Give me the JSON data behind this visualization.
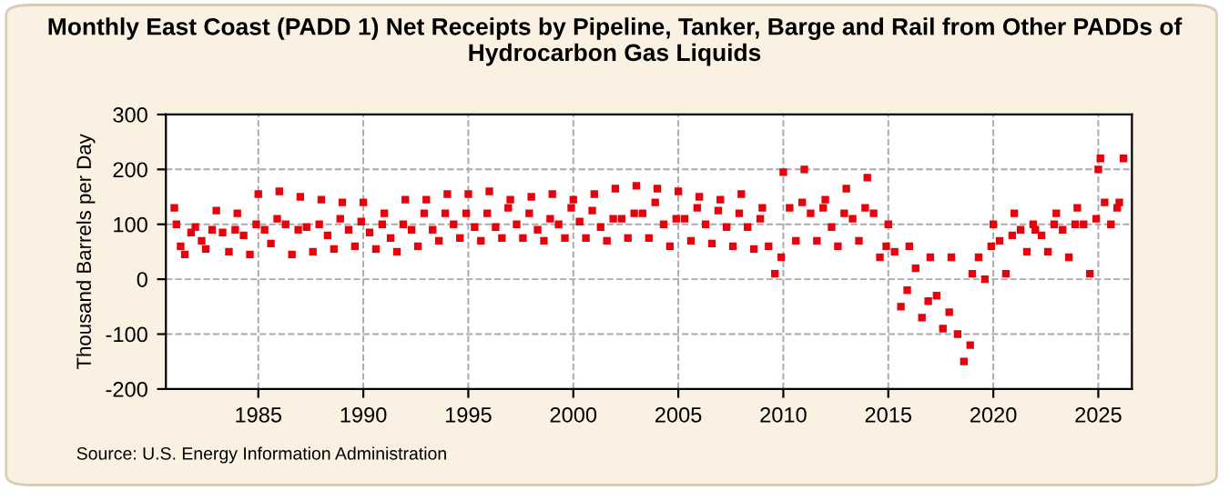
{
  "chart_data": {
    "type": "scatter",
    "title": "Monthly East Coast (PADD 1) Net Receipts by Pipeline, Tanker, Barge and Rail from Other PADDs of Hydrocarbon Gas Liquids",
    "ylabel": "Thousand Barrels per Day",
    "annotations": [
      "Source: U.S. Energy Information Administration"
    ],
    "xlim": [
      1980.6,
      2026.6
    ],
    "xticks": [
      1985,
      1990,
      1995,
      2000,
      2005,
      2010,
      2015,
      2020,
      2025
    ],
    "ylim": [
      -200,
      300
    ],
    "yticks": [
      -200,
      -100,
      0,
      100,
      200,
      300
    ],
    "grid": true,
    "marker": "square",
    "series": [
      {
        "color": "#e8000b",
        "x": [
          1981.0,
          1981.1,
          1981.3,
          1981.5,
          1981.8,
          1982.0,
          1982.3,
          1982.5,
          1982.8,
          1983.0,
          1983.3,
          1983.6,
          1983.9,
          1984.0,
          1984.3,
          1984.6,
          1984.9,
          1985.0,
          1985.3,
          1985.6,
          1985.9,
          1986.0,
          1986.3,
          1986.6,
          1986.9,
          1987.0,
          1987.3,
          1987.6,
          1987.9,
          1988.0,
          1988.3,
          1988.6,
          1988.9,
          1989.0,
          1989.3,
          1989.6,
          1989.9,
          1990.0,
          1990.3,
          1990.6,
          1990.9,
          1991.0,
          1991.3,
          1991.6,
          1991.9,
          1992.0,
          1992.3,
          1992.6,
          1992.9,
          1993.0,
          1993.3,
          1993.6,
          1993.9,
          1994.0,
          1994.3,
          1994.6,
          1994.9,
          1995.0,
          1995.3,
          1995.6,
          1995.9,
          1996.0,
          1996.3,
          1996.6,
          1996.9,
          1997.0,
          1997.3,
          1997.6,
          1997.9,
          1998.0,
          1998.3,
          1998.6,
          1998.9,
          1999.0,
          1999.3,
          1999.6,
          1999.9,
          2000.0,
          2000.3,
          2000.6,
          2000.9,
          2001.0,
          2001.3,
          2001.6,
          2001.9,
          2002.0,
          2002.3,
          2002.6,
          2002.9,
          2003.0,
          2003.3,
          2003.6,
          2003.9,
          2004.0,
          2004.3,
          2004.6,
          2004.9,
          2005.0,
          2005.3,
          2005.6,
          2005.9,
          2006.0,
          2006.3,
          2006.6,
          2006.9,
          2007.0,
          2007.3,
          2007.6,
          2007.9,
          2008.0,
          2008.3,
          2008.6,
          2008.9,
          2009.0,
          2009.3,
          2009.6,
          2009.9,
          2010.0,
          2010.3,
          2010.6,
          2010.9,
          2011.0,
          2011.3,
          2011.6,
          2011.9,
          2012.0,
          2012.3,
          2012.6,
          2012.9,
          2013.0,
          2013.3,
          2013.6,
          2013.9,
          2014.0,
          2014.3,
          2014.6,
          2014.9,
          2015.0,
          2015.3,
          2015.6,
          2015.9,
          2016.0,
          2016.3,
          2016.6,
          2016.9,
          2017.0,
          2017.3,
          2017.6,
          2017.9,
          2018.0,
          2018.3,
          2018.6,
          2018.9,
          2019.0,
          2019.3,
          2019.6,
          2019.9,
          2020.0,
          2020.3,
          2020.6,
          2020.9,
          2021.0,
          2021.3,
          2021.6,
          2021.9,
          2022.0,
          2022.3,
          2022.6,
          2022.9,
          2023.0,
          2023.3,
          2023.6,
          2023.9,
          2024.0,
          2024.3,
          2024.6,
          2024.9,
          2025.0,
          2025.1,
          2025.3,
          2025.6,
          2025.9,
          2026.0,
          2026.2
        ],
        "values": [
          130,
          100,
          60,
          45,
          85,
          95,
          70,
          55,
          90,
          125,
          85,
          50,
          90,
          120,
          80,
          45,
          100,
          155,
          90,
          65,
          110,
          160,
          100,
          45,
          90,
          150,
          95,
          50,
          100,
          145,
          80,
          55,
          110,
          140,
          90,
          60,
          105,
          140,
          85,
          55,
          100,
          120,
          75,
          50,
          100,
          145,
          90,
          60,
          120,
          145,
          90,
          70,
          120,
          155,
          100,
          75,
          120,
          155,
          95,
          70,
          120,
          160,
          95,
          75,
          130,
          145,
          100,
          75,
          120,
          150,
          90,
          70,
          110,
          155,
          100,
          75,
          130,
          145,
          105,
          75,
          125,
          155,
          95,
          70,
          110,
          165,
          110,
          75,
          120,
          170,
          120,
          75,
          140,
          165,
          100,
          60,
          110,
          160,
          110,
          70,
          130,
          150,
          100,
          65,
          125,
          145,
          95,
          60,
          120,
          155,
          95,
          55,
          110,
          130,
          60,
          10,
          40,
          195,
          130,
          70,
          140,
          200,
          120,
          70,
          130,
          145,
          95,
          60,
          120,
          165,
          110,
          70,
          130,
          185,
          120,
          40,
          60,
          100,
          50,
          -50,
          -20,
          60,
          20,
          -70,
          -40,
          40,
          -30,
          -90,
          -60,
          40,
          -100,
          -150,
          -120,
          10,
          40,
          0,
          60,
          100,
          70,
          10,
          80,
          120,
          90,
          50,
          100,
          90,
          80,
          50,
          100,
          120,
          90,
          40,
          100,
          130,
          100,
          10,
          110,
          200,
          220,
          140,
          100,
          130,
          140,
          220
        ]
      }
    ]
  }
}
